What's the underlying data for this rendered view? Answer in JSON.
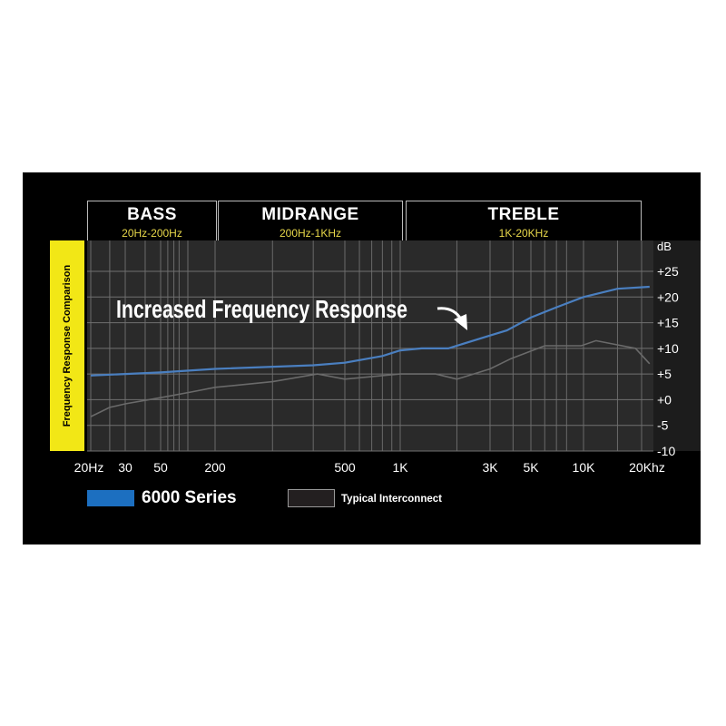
{
  "chart_data": {
    "type": "line",
    "ylabel": "Frequency Response Comparison",
    "yunit": "dB",
    "ylim": [
      -10,
      25
    ],
    "yticks": [
      "+25",
      "+20",
      "+15",
      "+10",
      "+5",
      "+0",
      "-5",
      "-10"
    ],
    "xscale": "log",
    "xticks": [
      {
        "f": 20,
        "label": "20Hz"
      },
      {
        "f": 30,
        "label": "30"
      },
      {
        "f": 50,
        "label": "50"
      },
      {
        "f": 200,
        "label": "200"
      },
      {
        "f": 500,
        "label": "500"
      },
      {
        "f": 1000,
        "label": "1K"
      },
      {
        "f": 3000,
        "label": "3K"
      },
      {
        "f": 5000,
        "label": "5K"
      },
      {
        "f": 10000,
        "label": "10K"
      },
      {
        "f": 20000,
        "label": "20Khz"
      }
    ],
    "bands": [
      {
        "name": "BASS",
        "range": "20Hz-200Hz"
      },
      {
        "name": "MIDRANGE",
        "range": "200Hz-1KHz"
      },
      {
        "name": "TREBLE",
        "range": "1K-20KHz"
      }
    ],
    "annotation": "Increased Frequency Response",
    "grid": true,
    "legend_position": "bottom-left",
    "series": [
      {
        "name": "6000 Series",
        "color": "#4a7fc0",
        "x": [
          20,
          50,
          200,
          400,
          500,
          800,
          1000,
          1300,
          1800,
          3000,
          3700,
          5000,
          7000,
          10000,
          15000,
          22000
        ],
        "y": [
          4.7,
          5.3,
          6,
          6.7,
          7.2,
          8.5,
          9.6,
          10,
          10,
          12.5,
          13.5,
          16,
          18,
          20,
          21.6,
          22
        ]
      },
      {
        "name": "Typical Interconnect",
        "color": "#6a6a6a",
        "x": [
          20,
          25,
          30,
          50,
          110,
          200,
          300,
          412,
          500,
          1000,
          1540,
          2000,
          3000,
          3900,
          6000,
          9700,
          11600,
          18600,
          22000
        ],
        "y": [
          -3.3,
          -1.5,
          -0.8,
          0.4,
          1.5,
          2.4,
          3.5,
          5,
          4,
          5,
          5,
          4,
          6,
          8,
          10.5,
          10.5,
          11.5,
          10,
          7
        ]
      }
    ]
  },
  "legend_colors": {
    "series1": "#1c6fc0",
    "series2": "#231f20"
  }
}
